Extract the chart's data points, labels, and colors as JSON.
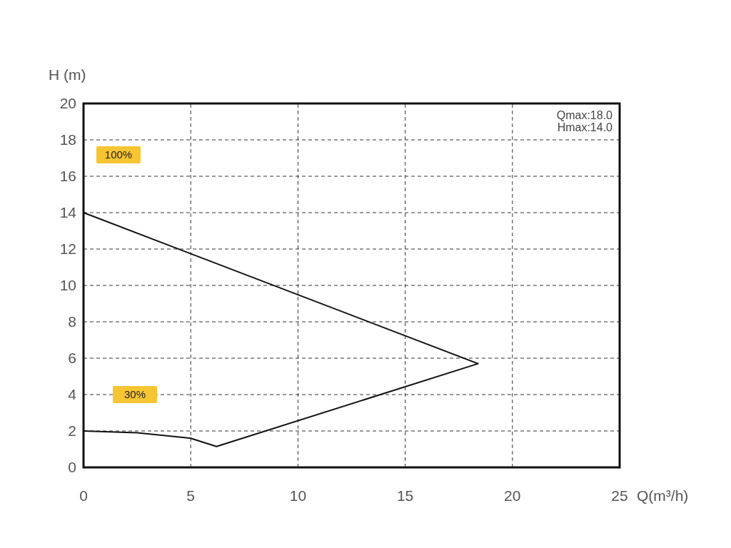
{
  "chart_data": {
    "type": "line",
    "xlabel": "Q(m³/h)",
    "ylabel": "H (m)",
    "xlim": [
      0,
      25
    ],
    "xticks": [
      0,
      5,
      10,
      15,
      20,
      25
    ],
    "ylim": [
      0,
      20
    ],
    "yticks": [
      0,
      2,
      4,
      6,
      8,
      10,
      12,
      14,
      16,
      18,
      20
    ],
    "grid": true,
    "marker": "none",
    "line_style": "solid",
    "series": [
      {
        "color": "#111111",
        "x": [
          0,
          18.4,
          6.2,
          5,
          2.5,
          0
        ],
        "values": [
          14,
          5.7,
          1.15,
          1.6,
          1.9,
          2.0
        ]
      }
    ],
    "annotations": [
      "100%",
      "30%",
      "Qmax:18.0",
      "Hmax:14.0"
    ]
  }
}
